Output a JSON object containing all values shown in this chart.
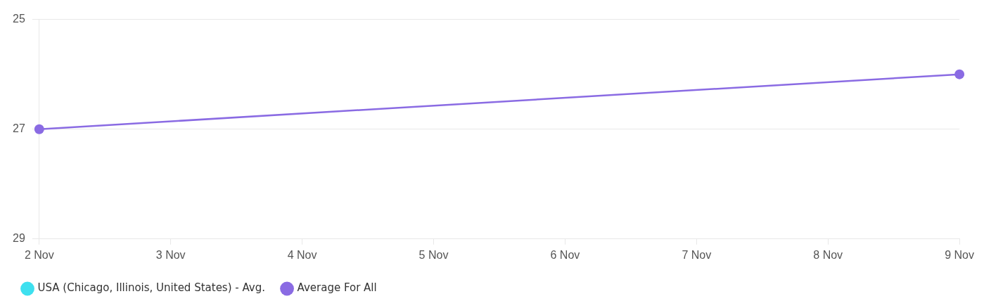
{
  "chart_data": {
    "type": "line",
    "categories": [
      "2 Nov",
      "3 Nov",
      "4 Nov",
      "5 Nov",
      "6 Nov",
      "7 Nov",
      "8 Nov",
      "9 Nov"
    ],
    "series": [
      {
        "name": "USA (Chicago, Illinois, United States) - Avg.",
        "color": "#3ee0ef",
        "values": [
          null,
          null,
          null,
          null,
          null,
          null,
          null,
          null
        ]
      },
      {
        "name": "Average For All",
        "color": "#8a6be3",
        "values": [
          27,
          null,
          null,
          null,
          null,
          null,
          null,
          26
        ]
      }
    ],
    "ylim": [
      29,
      25
    ],
    "yticks": [
      25,
      27,
      29
    ],
    "grid": "y",
    "legend": "bottom left",
    "marker": "circle",
    "line_style": "solid"
  }
}
